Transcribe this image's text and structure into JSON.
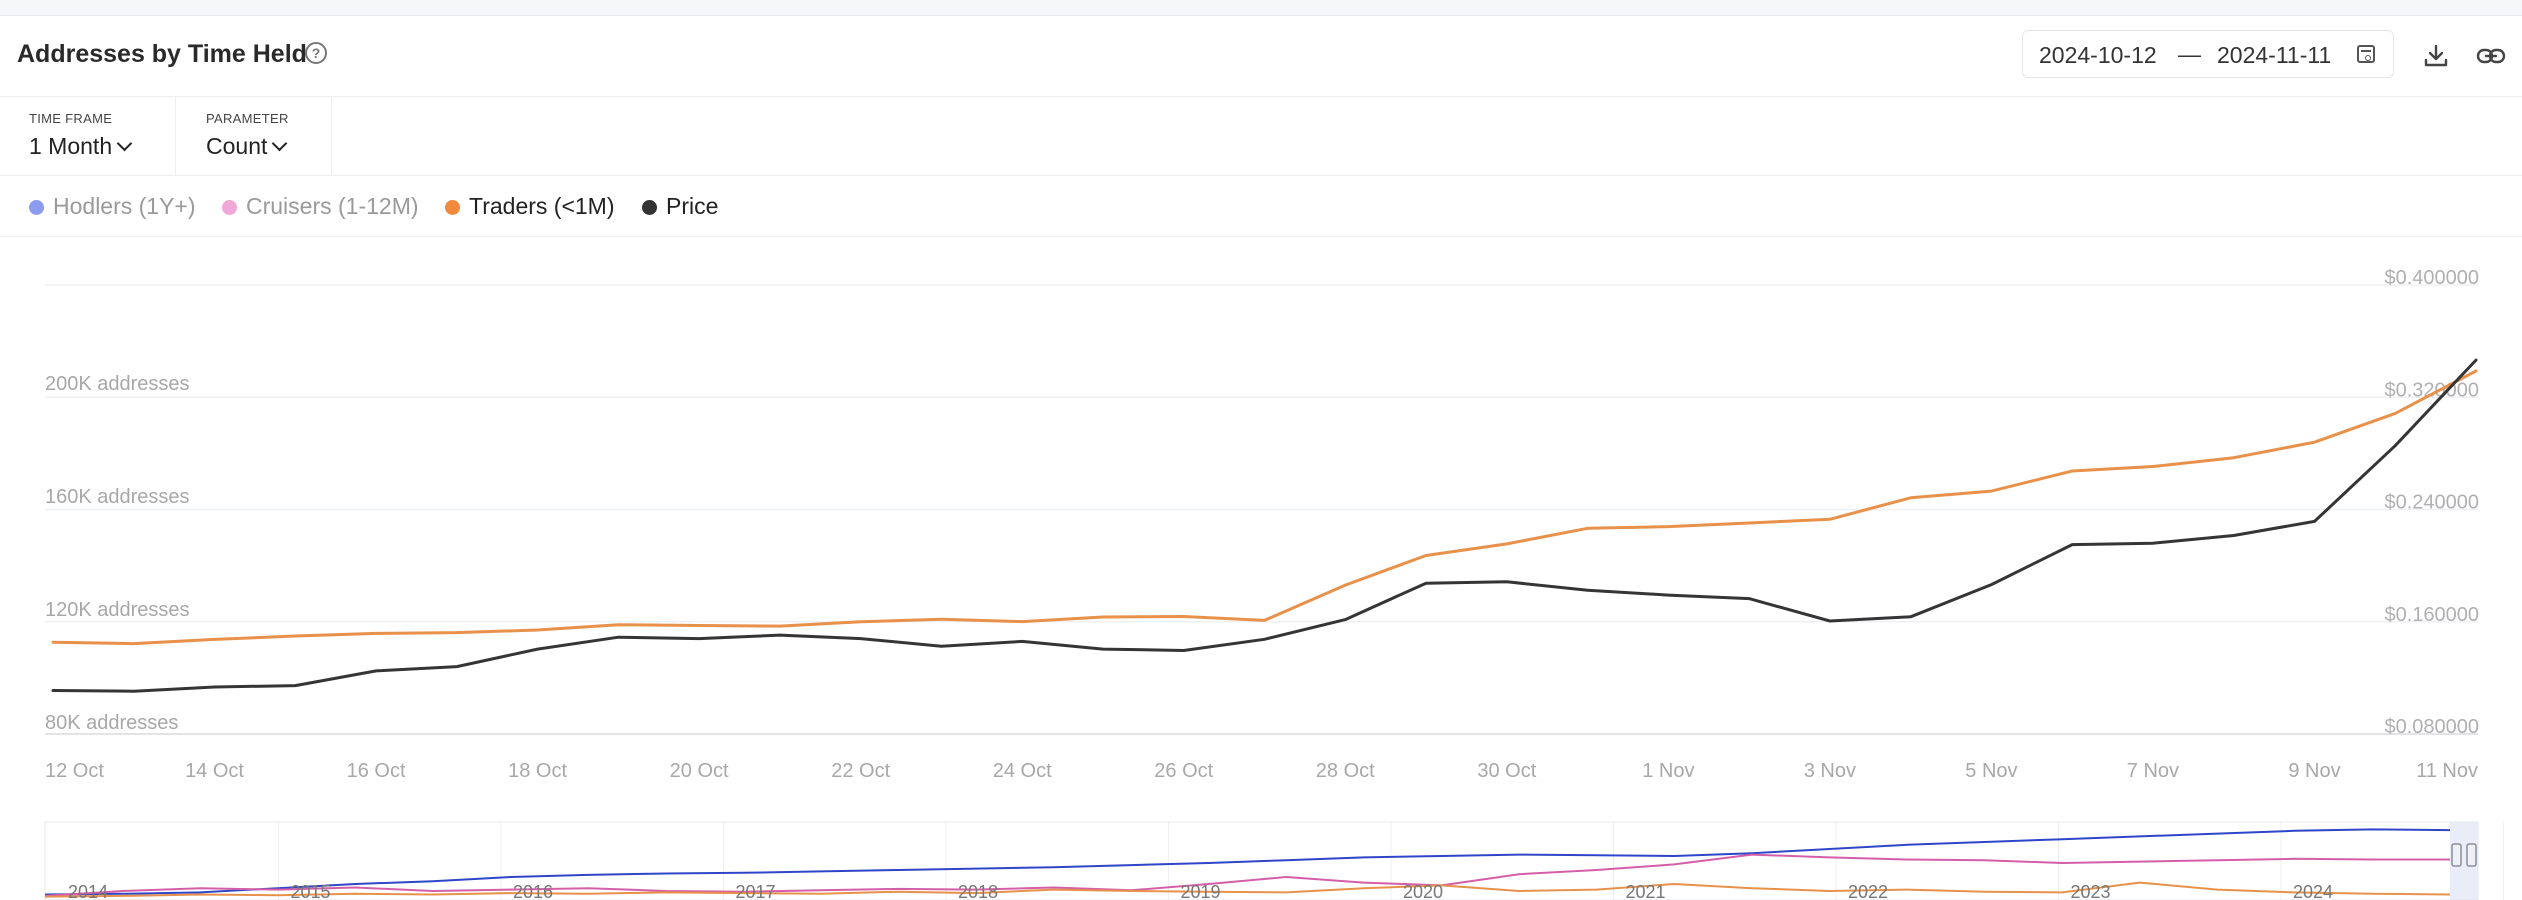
{
  "header": {
    "title": "Addresses by Time Held",
    "date_start": "2024-10-12",
    "date_separator": "—",
    "date_end": "2024-11-11"
  },
  "controls": {
    "time_frame_label": "TIME FRAME",
    "time_frame_value": "1 Month",
    "parameter_label": "PARAMETER",
    "parameter_value": "Count"
  },
  "legend": [
    {
      "label": "Hodlers (1Y+)",
      "color": "#8b9cf0",
      "active": false
    },
    {
      "label": "Cruisers (1-12M)",
      "color": "#f0a8d8",
      "active": false
    },
    {
      "label": "Traders (<1M)",
      "color": "#f08a3e",
      "active": true
    },
    {
      "label": "Price",
      "color": "#333333",
      "active": true
    }
  ],
  "chart_data": {
    "type": "line",
    "x": [
      "12 Oct",
      "13 Oct",
      "14 Oct",
      "15 Oct",
      "16 Oct",
      "17 Oct",
      "18 Oct",
      "19 Oct",
      "20 Oct",
      "21 Oct",
      "22 Oct",
      "23 Oct",
      "24 Oct",
      "25 Oct",
      "26 Oct",
      "27 Oct",
      "28 Oct",
      "29 Oct",
      "30 Oct",
      "31 Oct",
      "1 Nov",
      "2 Nov",
      "3 Nov",
      "4 Nov",
      "5 Nov",
      "6 Nov",
      "7 Nov",
      "8 Nov",
      "9 Nov",
      "10 Nov",
      "11 Nov"
    ],
    "x_tick_labels": [
      "12 Oct",
      "14 Oct",
      "16 Oct",
      "18 Oct",
      "20 Oct",
      "22 Oct",
      "24 Oct",
      "26 Oct",
      "28 Oct",
      "30 Oct",
      "1 Nov",
      "3 Nov",
      "5 Nov",
      "7 Nov",
      "9 Nov",
      "11 Nov"
    ],
    "y_left_ticks": [
      "80K addresses",
      "120K addresses",
      "160K addresses",
      "200K addresses"
    ],
    "y_left_range": [
      80000,
      240000
    ],
    "y_right_ticks": [
      "$0.080000",
      "$0.160000",
      "$0.240000",
      "$0.320000",
      "$0.400000"
    ],
    "y_right_range": [
      0.08,
      0.4
    ],
    "grid": true,
    "series": [
      {
        "name": "Traders (<1M)",
        "axis": "left",
        "color": "#e8914a",
        "values": [
          112500,
          112000,
          113500,
          114700,
          115600,
          115900,
          116800,
          118700,
          118400,
          118200,
          119700,
          120600,
          119800,
          121400,
          121600,
          120200,
          132700,
          143200,
          147300,
          152800,
          153400,
          154700,
          156000,
          163600,
          166000,
          173100,
          174700,
          177800,
          183300,
          193500,
          208500
        ]
      },
      {
        "name": "Price",
        "axis": "right",
        "color": "#353535",
        "values": [
          0.111,
          0.1105,
          0.1135,
          0.1145,
          0.125,
          0.128,
          0.1405,
          0.149,
          0.148,
          0.1505,
          0.148,
          0.1425,
          0.146,
          0.1405,
          0.1395,
          0.1475,
          0.1615,
          0.1875,
          0.1885,
          0.1825,
          0.179,
          0.1765,
          0.1605,
          0.1635,
          0.1865,
          0.215,
          0.216,
          0.2215,
          0.2315,
          0.2855,
          0.3465
        ]
      }
    ],
    "navigator": {
      "year_labels": [
        "2014",
        "2015",
        "2016",
        "2017",
        "2018",
        "2019",
        "2020",
        "2021",
        "2022",
        "2023",
        "2024"
      ],
      "series": [
        {
          "color": "#2f46c8",
          "values": [
            0.05,
            0.06,
            0.08,
            0.14,
            0.2,
            0.24,
            0.3,
            0.33,
            0.35,
            0.36,
            0.38,
            0.4,
            0.42,
            0.44,
            0.47,
            0.5,
            0.54,
            0.58,
            0.6,
            0.62,
            0.61,
            0.6,
            0.64,
            0.7,
            0.76,
            0.8,
            0.84,
            0.88,
            0.92,
            0.96,
            0.98,
            0.97
          ]
        },
        {
          "color": "#d45fa8",
          "values": [
            0.03,
            0.1,
            0.14,
            0.12,
            0.15,
            0.1,
            0.12,
            0.14,
            0.1,
            0.09,
            0.11,
            0.13,
            0.12,
            0.15,
            0.11,
            0.2,
            0.3,
            0.22,
            0.18,
            0.34,
            0.4,
            0.48,
            0.62,
            0.58,
            0.55,
            0.54,
            0.5,
            0.52,
            0.54,
            0.56,
            0.55,
            0.55
          ]
        },
        {
          "color": "#e8914a",
          "values": [
            0.02,
            0.03,
            0.05,
            0.04,
            0.06,
            0.05,
            0.07,
            0.06,
            0.08,
            0.07,
            0.06,
            0.09,
            0.07,
            0.12,
            0.1,
            0.09,
            0.08,
            0.14,
            0.18,
            0.1,
            0.12,
            0.2,
            0.14,
            0.1,
            0.12,
            0.09,
            0.08,
            0.22,
            0.12,
            0.08,
            0.06,
            0.05
          ]
        }
      ]
    }
  }
}
